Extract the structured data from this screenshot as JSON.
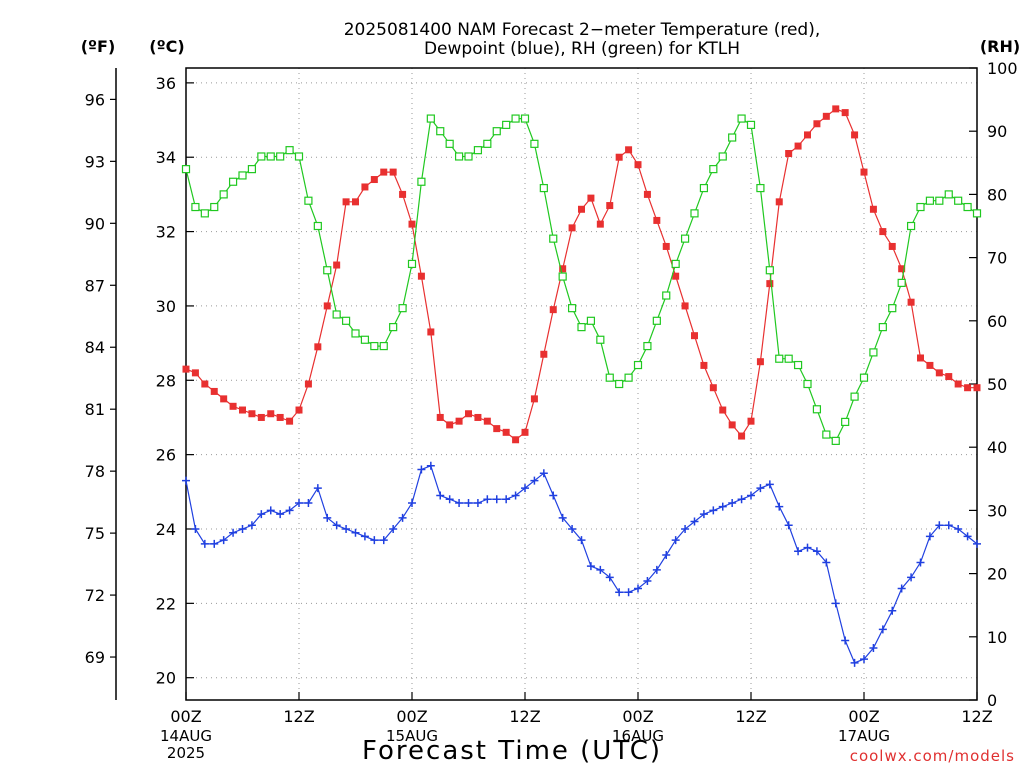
{
  "chart_data": {
    "type": "line",
    "title": "2025081400 NAM Forecast 2−meter Temperature (red),",
    "subtitle": "Dewpoint (blue), RH (green) for KTLH",
    "xlabel": "Forecast Time (UTC)",
    "credit": "coolwx.com/models",
    "unit_f": "(ºF)",
    "unit_c": "(ºC)",
    "unit_rh": "(RH)",
    "x_unit": "forecast hour",
    "xlim": [
      0,
      84
    ],
    "ylim_c": [
      19.4,
      36.4
    ],
    "ylim_rh": [
      0,
      100
    ],
    "grid": true,
    "x_ticks": [
      {
        "hour": 0,
        "label": "00Z",
        "date1": "14AUG",
        "date2": "2025"
      },
      {
        "hour": 12,
        "label": "12Z",
        "date1": "",
        "date2": ""
      },
      {
        "hour": 24,
        "label": "00Z",
        "date1": "15AUG",
        "date2": ""
      },
      {
        "hour": 36,
        "label": "12Z",
        "date1": "",
        "date2": ""
      },
      {
        "hour": 48,
        "label": "00Z",
        "date1": "16AUG",
        "date2": ""
      },
      {
        "hour": 60,
        "label": "12Z",
        "date1": "",
        "date2": ""
      },
      {
        "hour": 72,
        "label": "00Z",
        "date1": "17AUG",
        "date2": ""
      },
      {
        "hour": 84,
        "label": "12Z",
        "date1": "",
        "date2": ""
      }
    ],
    "y_ticks_c": [
      "20",
      "22",
      "24",
      "26",
      "28",
      "30",
      "32",
      "34",
      "36"
    ],
    "y_ticks_f": [
      "69",
      "72",
      "75",
      "78",
      "81",
      "84",
      "87",
      "90",
      "93",
      "96"
    ],
    "y_ticks_rh": [
      "0",
      "10",
      "20",
      "30",
      "40",
      "50",
      "60",
      "70",
      "80",
      "90",
      "100"
    ],
    "series": [
      {
        "name": "Temperature",
        "axis": "c",
        "color": "#e83030",
        "marker": "square-filled",
        "values": [
          28.3,
          28.2,
          27.9,
          27.7,
          27.5,
          27.3,
          27.2,
          27.1,
          27.0,
          27.1,
          27.0,
          26.9,
          27.2,
          27.9,
          28.9,
          30.0,
          31.1,
          32.8,
          32.8,
          33.2,
          33.4,
          33.6,
          33.6,
          33.0,
          32.2,
          30.8,
          29.3,
          27.0,
          26.8,
          26.9,
          27.1,
          27.0,
          26.9,
          26.7,
          26.6,
          26.4,
          26.6,
          27.5,
          28.7,
          29.9,
          31.0,
          32.1,
          32.6,
          32.9,
          32.2,
          32.7,
          34.0,
          34.2,
          33.8,
          33.0,
          32.3,
          31.6,
          30.8,
          30.0,
          29.2,
          28.4,
          27.8,
          27.2,
          26.8,
          26.5,
          26.9,
          28.5,
          30.6,
          32.8,
          34.1,
          34.3,
          34.6,
          34.9,
          35.1,
          35.3,
          35.2,
          34.6,
          33.6,
          32.6,
          32.0,
          31.6,
          31.0,
          30.1,
          28.6,
          28.4,
          28.2,
          28.1,
          27.9,
          27.8,
          27.8
        ]
      },
      {
        "name": "Dewpoint",
        "axis": "c",
        "color": "#2040e0",
        "marker": "plus",
        "values": [
          25.3,
          24.0,
          23.6,
          23.6,
          23.7,
          23.9,
          24.0,
          24.1,
          24.4,
          24.5,
          24.4,
          24.5,
          24.7,
          24.7,
          25.1,
          24.3,
          24.1,
          24.0,
          23.9,
          23.8,
          23.7,
          23.7,
          24.0,
          24.3,
          24.7,
          25.6,
          25.7,
          24.9,
          24.8,
          24.7,
          24.7,
          24.7,
          24.8,
          24.8,
          24.8,
          24.9,
          25.1,
          25.3,
          25.5,
          24.9,
          24.3,
          24.0,
          23.7,
          23.0,
          22.9,
          22.7,
          22.3,
          22.3,
          22.4,
          22.6,
          22.9,
          23.3,
          23.7,
          24.0,
          24.2,
          24.4,
          24.5,
          24.6,
          24.7,
          24.8,
          24.9,
          25.1,
          25.2,
          24.6,
          24.1,
          23.4,
          23.5,
          23.4,
          23.1,
          22.0,
          21.0,
          20.4,
          20.5,
          20.8,
          21.3,
          21.8,
          22.4,
          22.7,
          23.1,
          23.8,
          24.1,
          24.1,
          24.0,
          23.8,
          23.6
        ]
      },
      {
        "name": "RH",
        "axis": "rh",
        "color": "#20c820",
        "marker": "square-open",
        "values": [
          84,
          78,
          77,
          78,
          80,
          82,
          83,
          84,
          86,
          86,
          86,
          87,
          86,
          79,
          75,
          68,
          61,
          60,
          58,
          57,
          56,
          56,
          59,
          62,
          69,
          82,
          92,
          90,
          88,
          86,
          86,
          87,
          88,
          90,
          91,
          92,
          92,
          88,
          81,
          73,
          67,
          62,
          59,
          60,
          57,
          51,
          50,
          51,
          53,
          56,
          60,
          64,
          69,
          73,
          77,
          81,
          84,
          86,
          89,
          92,
          91,
          81,
          68,
          54,
          54,
          53,
          50,
          46,
          42,
          41,
          44,
          48,
          51,
          55,
          59,
          62,
          66,
          75,
          78,
          79,
          79,
          80,
          79,
          78,
          77
        ]
      }
    ]
  }
}
